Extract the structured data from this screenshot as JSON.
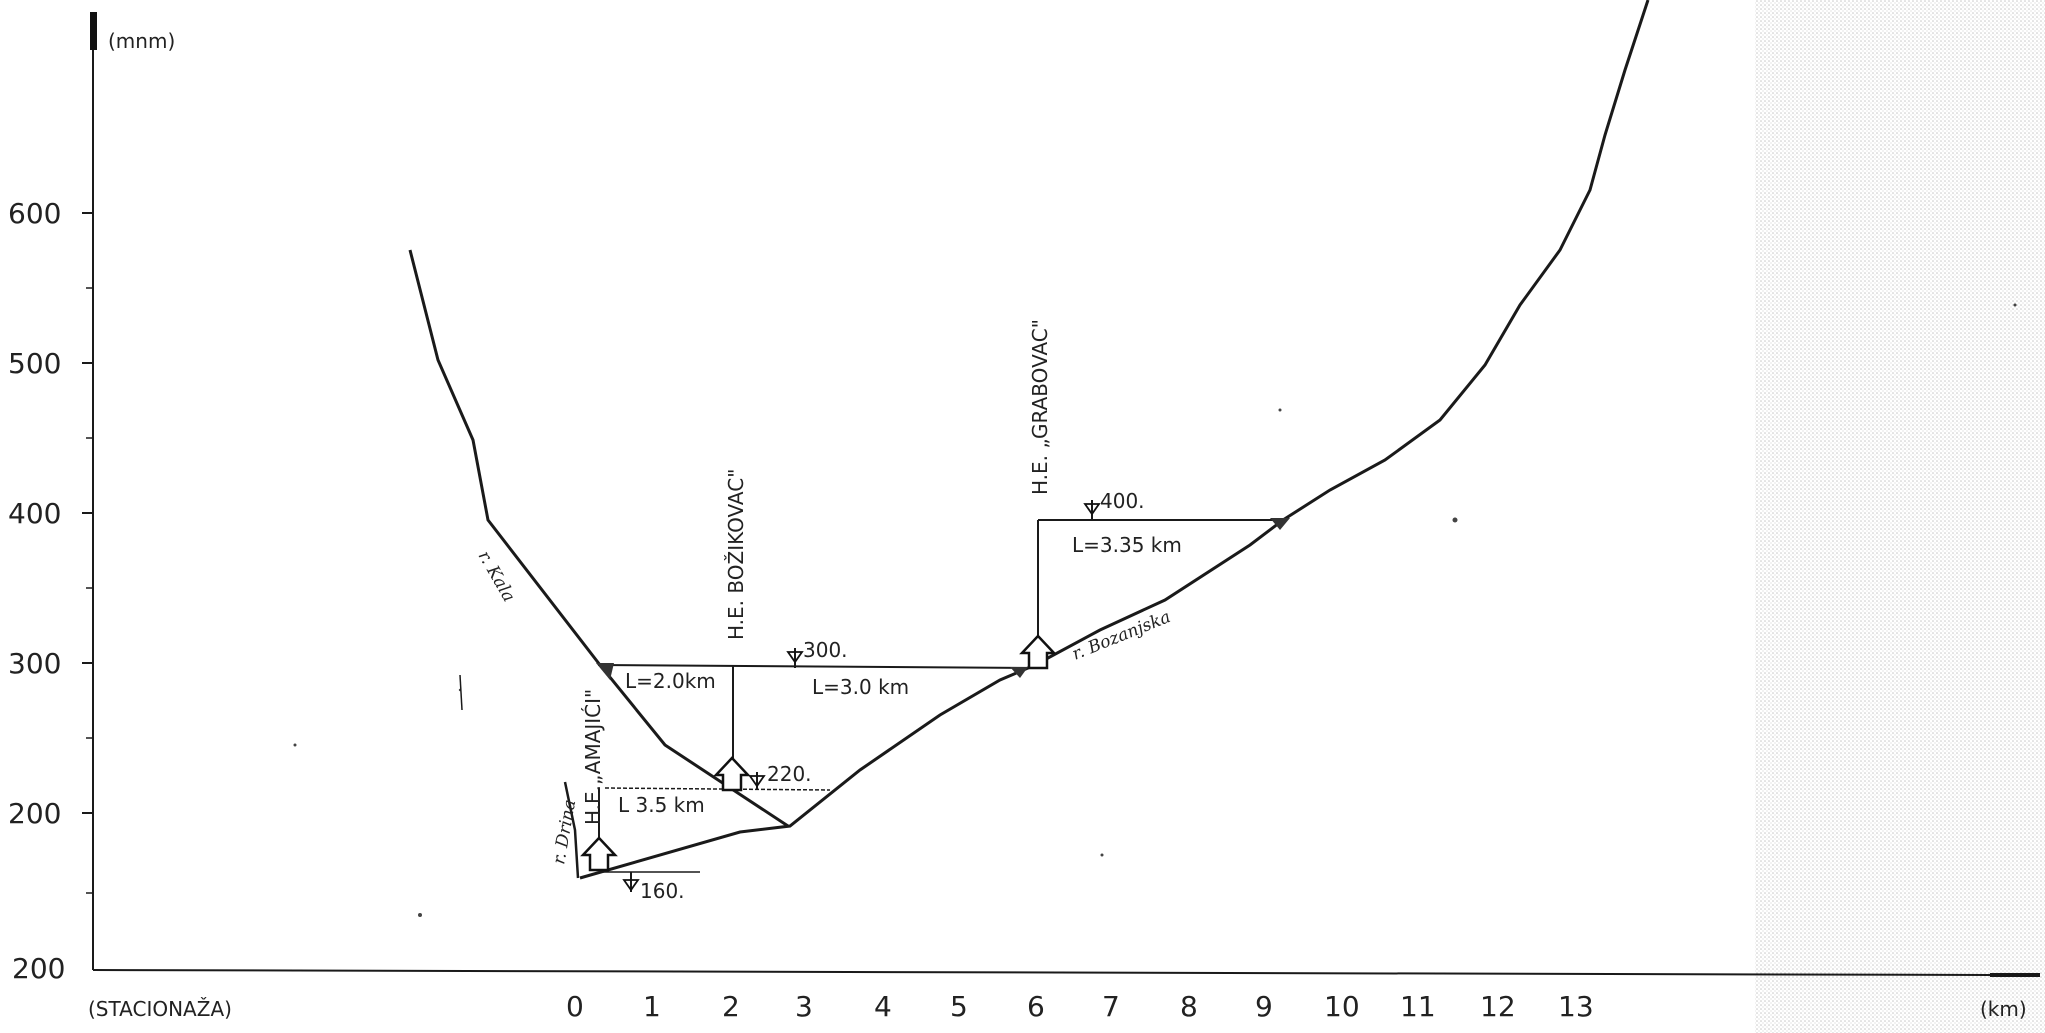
{
  "axes": {
    "y_unit": "(mnm)",
    "x_label": "(STACIONAŽA)",
    "x_unit": "(km)",
    "y_ticks": [
      "600",
      "500",
      "400",
      "300",
      "200",
      "200"
    ],
    "x_ticks": [
      "0",
      "1",
      "2",
      "3",
      "4",
      "5",
      "6",
      "7",
      "8",
      "9",
      "10",
      "11",
      "12",
      "13"
    ]
  },
  "plants": [
    {
      "name": "H.E.„AMAJIĆI\"",
      "level": "160.",
      "length": "L 3.5 km"
    },
    {
      "name": "H.E. BOŽIKOVAC\"",
      "level": "220.",
      "length": "L=2.0km"
    },
    {
      "name": "H.E. GRABOVAC\"",
      "level": "300.",
      "length": "L=3.0 km"
    },
    {
      "name": "H.E. GRABOVAC\" upper",
      "level": "400.",
      "length": "L=3.35 km"
    }
  ],
  "levels": {
    "l160": "160.",
    "l220": "220.",
    "l300": "300.",
    "l400": "400."
  },
  "lengths": {
    "amajici": "L 3.5 km",
    "bozikovac": "L=2.0km",
    "grabovac_lower": "L=3.0 km",
    "grabovac_upper": "L=3.35  km"
  },
  "plant_labels": {
    "amajici": "H.E.„AMAJIĆI\"",
    "bozikovac": "H.E. BOŽIKOVAC\"",
    "grabovac": "H.E. „GRABOVAC\""
  },
  "rivers": {
    "drina": "r. Drina",
    "kala": "r. Kala",
    "bozanjska": "r. Bozanjska"
  }
}
